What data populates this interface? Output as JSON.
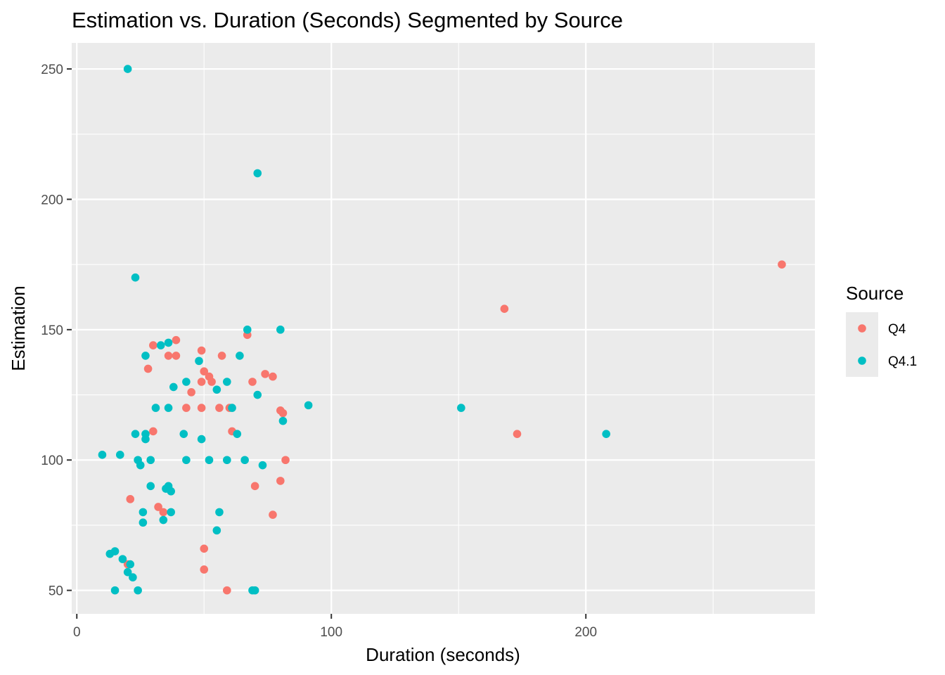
{
  "chart_data": {
    "type": "scatter",
    "title": "Estimation vs. Duration (Seconds) Segmented by Source",
    "xlabel": "Duration (seconds)",
    "ylabel": "Estimation",
    "xlim": [
      -2,
      290
    ],
    "ylim": [
      41,
      260
    ],
    "x_ticks": [
      0,
      100,
      200
    ],
    "x_tick_labels": [
      "0",
      "100",
      "200"
    ],
    "y_ticks": [
      50,
      100,
      150,
      200,
      250
    ],
    "y_tick_labels": [
      "50",
      "100",
      "150",
      "200",
      "250"
    ],
    "grid": true,
    "legend": {
      "title": "Source",
      "position": "right"
    },
    "series": [
      {
        "name": "Q4",
        "color": "#F8766D",
        "points": [
          [
            20,
            60
          ],
          [
            21,
            85
          ],
          [
            28,
            135
          ],
          [
            30,
            144
          ],
          [
            30,
            111
          ],
          [
            32,
            82
          ],
          [
            34,
            80
          ],
          [
            36,
            140
          ],
          [
            39,
            140
          ],
          [
            39,
            146
          ],
          [
            43,
            120
          ],
          [
            45,
            126
          ],
          [
            49,
            142
          ],
          [
            49,
            130
          ],
          [
            49,
            120
          ],
          [
            50,
            134
          ],
          [
            52,
            132
          ],
          [
            53,
            130
          ],
          [
            56,
            120
          ],
          [
            57,
            140
          ],
          [
            60,
            120
          ],
          [
            61,
            111
          ],
          [
            50,
            66
          ],
          [
            50,
            58
          ],
          [
            59,
            50
          ],
          [
            67,
            148
          ],
          [
            69,
            130
          ],
          [
            70,
            90
          ],
          [
            74,
            133
          ],
          [
            77,
            132
          ],
          [
            77,
            79
          ],
          [
            80,
            119
          ],
          [
            81,
            118
          ],
          [
            80,
            92
          ],
          [
            82,
            100
          ],
          [
            168,
            158
          ],
          [
            173,
            110
          ],
          [
            277,
            175
          ]
        ]
      },
      {
        "name": "Q4.1",
        "color": "#00BFC4",
        "points": [
          [
            20,
            250
          ],
          [
            71,
            210
          ],
          [
            23,
            170
          ],
          [
            10,
            102
          ],
          [
            13,
            64
          ],
          [
            15,
            65
          ],
          [
            15,
            50
          ],
          [
            17,
            102
          ],
          [
            18,
            62
          ],
          [
            20,
            57
          ],
          [
            21,
            60
          ],
          [
            22,
            55
          ],
          [
            23,
            110
          ],
          [
            24,
            100
          ],
          [
            24,
            50
          ],
          [
            25,
            98
          ],
          [
            26,
            80
          ],
          [
            26,
            76
          ],
          [
            27,
            140
          ],
          [
            27,
            110
          ],
          [
            27,
            108
          ],
          [
            29,
            100
          ],
          [
            29,
            90
          ],
          [
            31,
            120
          ],
          [
            33,
            144
          ],
          [
            34,
            77
          ],
          [
            35,
            89
          ],
          [
            36,
            145
          ],
          [
            36,
            120
          ],
          [
            36,
            90
          ],
          [
            37,
            88
          ],
          [
            37,
            80
          ],
          [
            38,
            128
          ],
          [
            42,
            110
          ],
          [
            43,
            130
          ],
          [
            43,
            100
          ],
          [
            48,
            138
          ],
          [
            49,
            108
          ],
          [
            52,
            100
          ],
          [
            55,
            127
          ],
          [
            55,
            73
          ],
          [
            56,
            80
          ],
          [
            59,
            130
          ],
          [
            59,
            100
          ],
          [
            61,
            120
          ],
          [
            63,
            110
          ],
          [
            64,
            140
          ],
          [
            66,
            100
          ],
          [
            67,
            150
          ],
          [
            69,
            50
          ],
          [
            70,
            50
          ],
          [
            71,
            125
          ],
          [
            73,
            98
          ],
          [
            80,
            150
          ],
          [
            81,
            115
          ],
          [
            91,
            121
          ],
          [
            151,
            120
          ],
          [
            208,
            110
          ]
        ]
      }
    ]
  }
}
